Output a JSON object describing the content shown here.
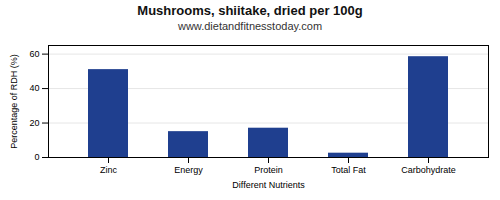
{
  "chart_data": {
    "type": "bar",
    "title": "Mushrooms, shiitake, dried per 100g",
    "subtitle": "www.dietandfitnesstoday.com",
    "xlabel": "Different Nutrients",
    "ylabel": "Percentage of RDH (%)",
    "categories": [
      "Zinc",
      "Energy",
      "Protein",
      "Total Fat",
      "Carbohydrate"
    ],
    "values": [
      51,
      15,
      17,
      2.5,
      58.5
    ],
    "color": "#1F3F8F",
    "ylim": [
      0,
      65
    ],
    "yticks": [
      0,
      20,
      40,
      60
    ],
    "grid": true
  }
}
